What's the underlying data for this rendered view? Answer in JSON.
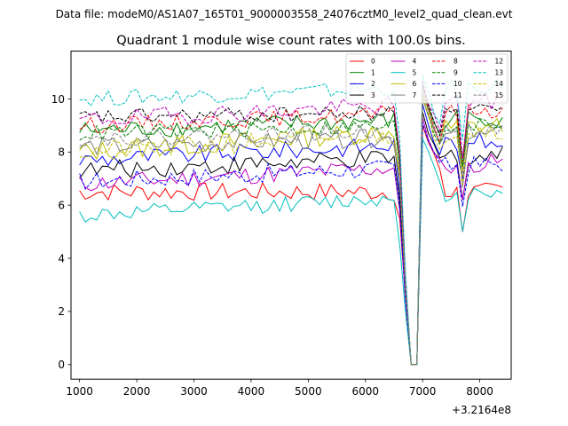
{
  "figure": {
    "suptitle": "Data file: modeM0/AS1A07_165T01_9000003558_24076cztM0_level2_quad_clean.evt"
  },
  "chart_data": {
    "type": "line",
    "title": "Quadrant 1 module wise count rates with 100.0s bins.",
    "xlabel": "",
    "ylabel": "",
    "x_offset_label": "+3.2164e8",
    "xlim": [
      850,
      8550
    ],
    "ylim": [
      -0.55,
      11.8
    ],
    "xticks": [
      1000,
      2000,
      3000,
      4000,
      5000,
      6000,
      7000,
      8000
    ],
    "yticks": [
      0,
      2,
      4,
      6,
      8,
      10
    ],
    "xtick_labels": [
      "1000",
      "2000",
      "3000",
      "4000",
      "5000",
      "6000",
      "7000",
      "8000"
    ],
    "ytick_labels": [
      "0",
      "2",
      "4",
      "6",
      "8",
      "10"
    ],
    "x_start": 1000,
    "x_step": 100,
    "grid": false,
    "legend_location": "upper-right",
    "dropout": {
      "approach": [
        6600,
        6700
      ],
      "zero": [
        6800,
        6900
      ],
      "peak": 7000,
      "recovery_factors": [
        0.93,
        0.87,
        0.82
      ],
      "dip_at": 7700,
      "dip_factor": 0.8
    },
    "series": [
      {
        "name": "0",
        "base": 6.5,
        "slope": 0.0,
        "noise": 0.35,
        "color": "#ff0000",
        "dash": "solid",
        "approach_values": [
          5.5,
          2.5
        ],
        "peak_value": 9.0
      },
      {
        "name": "1",
        "base": 8.8,
        "slope": 0.07,
        "noise": 0.35,
        "color": "#008000",
        "dash": "solid",
        "approach_values": [
          7.5,
          3.0
        ],
        "peak_value": 10.5
      },
      {
        "name": "2",
        "base": 7.7,
        "slope": 0.1,
        "noise": 0.35,
        "color": "#0000ff",
        "dash": "solid",
        "approach_values": [
          6.5,
          2.8
        ],
        "peak_value": 9.8
      },
      {
        "name": "3",
        "base": 7.3,
        "slope": 0.08,
        "noise": 0.35,
        "color": "#000000",
        "dash": "solid",
        "approach_values": [
          6.2,
          2.6
        ],
        "peak_value": 9.5
      },
      {
        "name": "4",
        "base": 6.8,
        "slope": 0.11,
        "noise": 0.35,
        "color": "#bf00bf",
        "dash": "solid",
        "approach_values": [
          5.8,
          2.4
        ],
        "peak_value": 9.3
      },
      {
        "name": "5",
        "base": 5.6,
        "slope": 0.12,
        "noise": 0.3,
        "color": "#00bfbf",
        "dash": "solid",
        "approach_values": [
          4.5,
          2.0
        ],
        "peak_value": 8.5
      },
      {
        "name": "6",
        "base": 8.0,
        "slope": 0.14,
        "noise": 0.4,
        "color": "#bfbf00",
        "dash": "solid",
        "approach_values": [
          7.2,
          3.0
        ],
        "peak_value": 10.2
      },
      {
        "name": "7",
        "base": 8.2,
        "slope": 0.06,
        "noise": 0.35,
        "color": "#808080",
        "dash": "solid",
        "approach_values": [
          7.0,
          2.9
        ],
        "peak_value": 10.0
      },
      {
        "name": "8",
        "base": 9.0,
        "slope": 0.08,
        "noise": 0.3,
        "color": "#ff0000",
        "dash": "dashed",
        "approach_values": [
          7.8,
          3.1
        ],
        "peak_value": 10.3
      },
      {
        "name": "9",
        "base": 8.7,
        "slope": 0.05,
        "noise": 0.3,
        "color": "#008000",
        "dash": "dashed",
        "approach_values": [
          7.5,
          3.0
        ],
        "peak_value": 10.1
      },
      {
        "name": "10",
        "base": 6.9,
        "slope": 0.09,
        "noise": 0.35,
        "color": "#0000ff",
        "dash": "dashed",
        "approach_values": [
          5.9,
          2.5
        ],
        "peak_value": 9.1
      },
      {
        "name": "11",
        "base": 9.3,
        "slope": 0.03,
        "noise": 0.3,
        "color": "#000000",
        "dash": "dashed",
        "approach_values": [
          8.0,
          3.2
        ],
        "peak_value": 10.6
      },
      {
        "name": "12",
        "base": 9.2,
        "slope": 0.1,
        "noise": 0.35,
        "color": "#bf00bf",
        "dash": "dashed",
        "approach_values": [
          8.0,
          3.2
        ],
        "peak_value": 10.7
      },
      {
        "name": "13",
        "base": 10.0,
        "slope": 0.07,
        "noise": 0.3,
        "color": "#00bfbf",
        "dash": "dashed",
        "approach_values": [
          8.5,
          3.5
        ],
        "peak_value": 10.9
      },
      {
        "name": "14",
        "base": 8.0,
        "slope": 0.12,
        "noise": 0.4,
        "color": "#bfbf00",
        "dash": "dashed",
        "approach_values": [
          7.0,
          2.9
        ],
        "peak_value": 10.0
      },
      {
        "name": "15",
        "base": 8.5,
        "slope": 0.05,
        "noise": 0.3,
        "color": "#808080",
        "dash": "dashed",
        "approach_values": [
          7.3,
          3.0
        ],
        "peak_value": 10.2
      }
    ]
  }
}
